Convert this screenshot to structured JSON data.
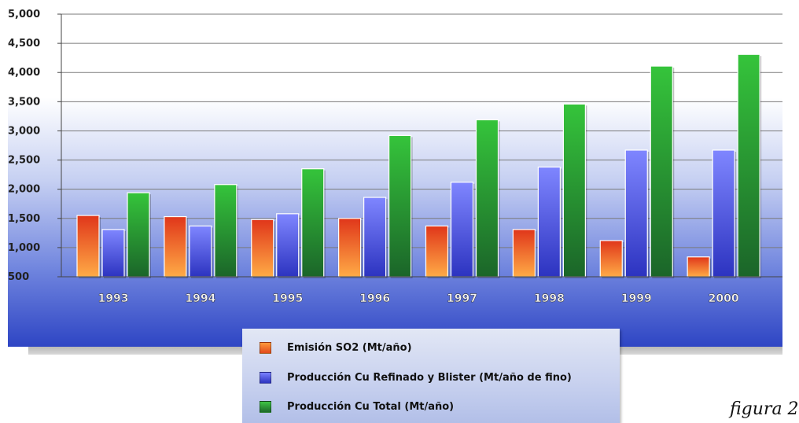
{
  "chart_data": {
    "type": "bar",
    "categories": [
      "1993",
      "1994",
      "1995",
      "1996",
      "1997",
      "1998",
      "1999",
      "2000"
    ],
    "series": [
      {
        "name": "Emisión SO2 (Mt/año)",
        "color": "#e8501c",
        "values": [
          1550,
          1530,
          1480,
          1500,
          1370,
          1310,
          1120,
          840
        ]
      },
      {
        "name": "Producción Cu Refinado y Blister (Mt/año de fino)",
        "color": "#3f48d6",
        "values": [
          1310,
          1370,
          1580,
          1860,
          2120,
          2380,
          2670,
          2670
        ]
      },
      {
        "name": "Producción Cu Total (Mt/año)",
        "color": "#2f9e3a",
        "values": [
          1940,
          2080,
          2350,
          2920,
          3190,
          3460,
          4110,
          4310
        ]
      }
    ],
    "y_ticks": [
      "500",
      "1,000",
      "1,500",
      "2,000",
      "2,500",
      "3,000",
      "3,500",
      "4,000",
      "4,500",
      "5,000"
    ],
    "ylim": [
      500,
      5000
    ],
    "grid": true,
    "legend_position": "bottom",
    "title": "",
    "xlabel": "",
    "ylabel": ""
  },
  "caption": "figura 2"
}
